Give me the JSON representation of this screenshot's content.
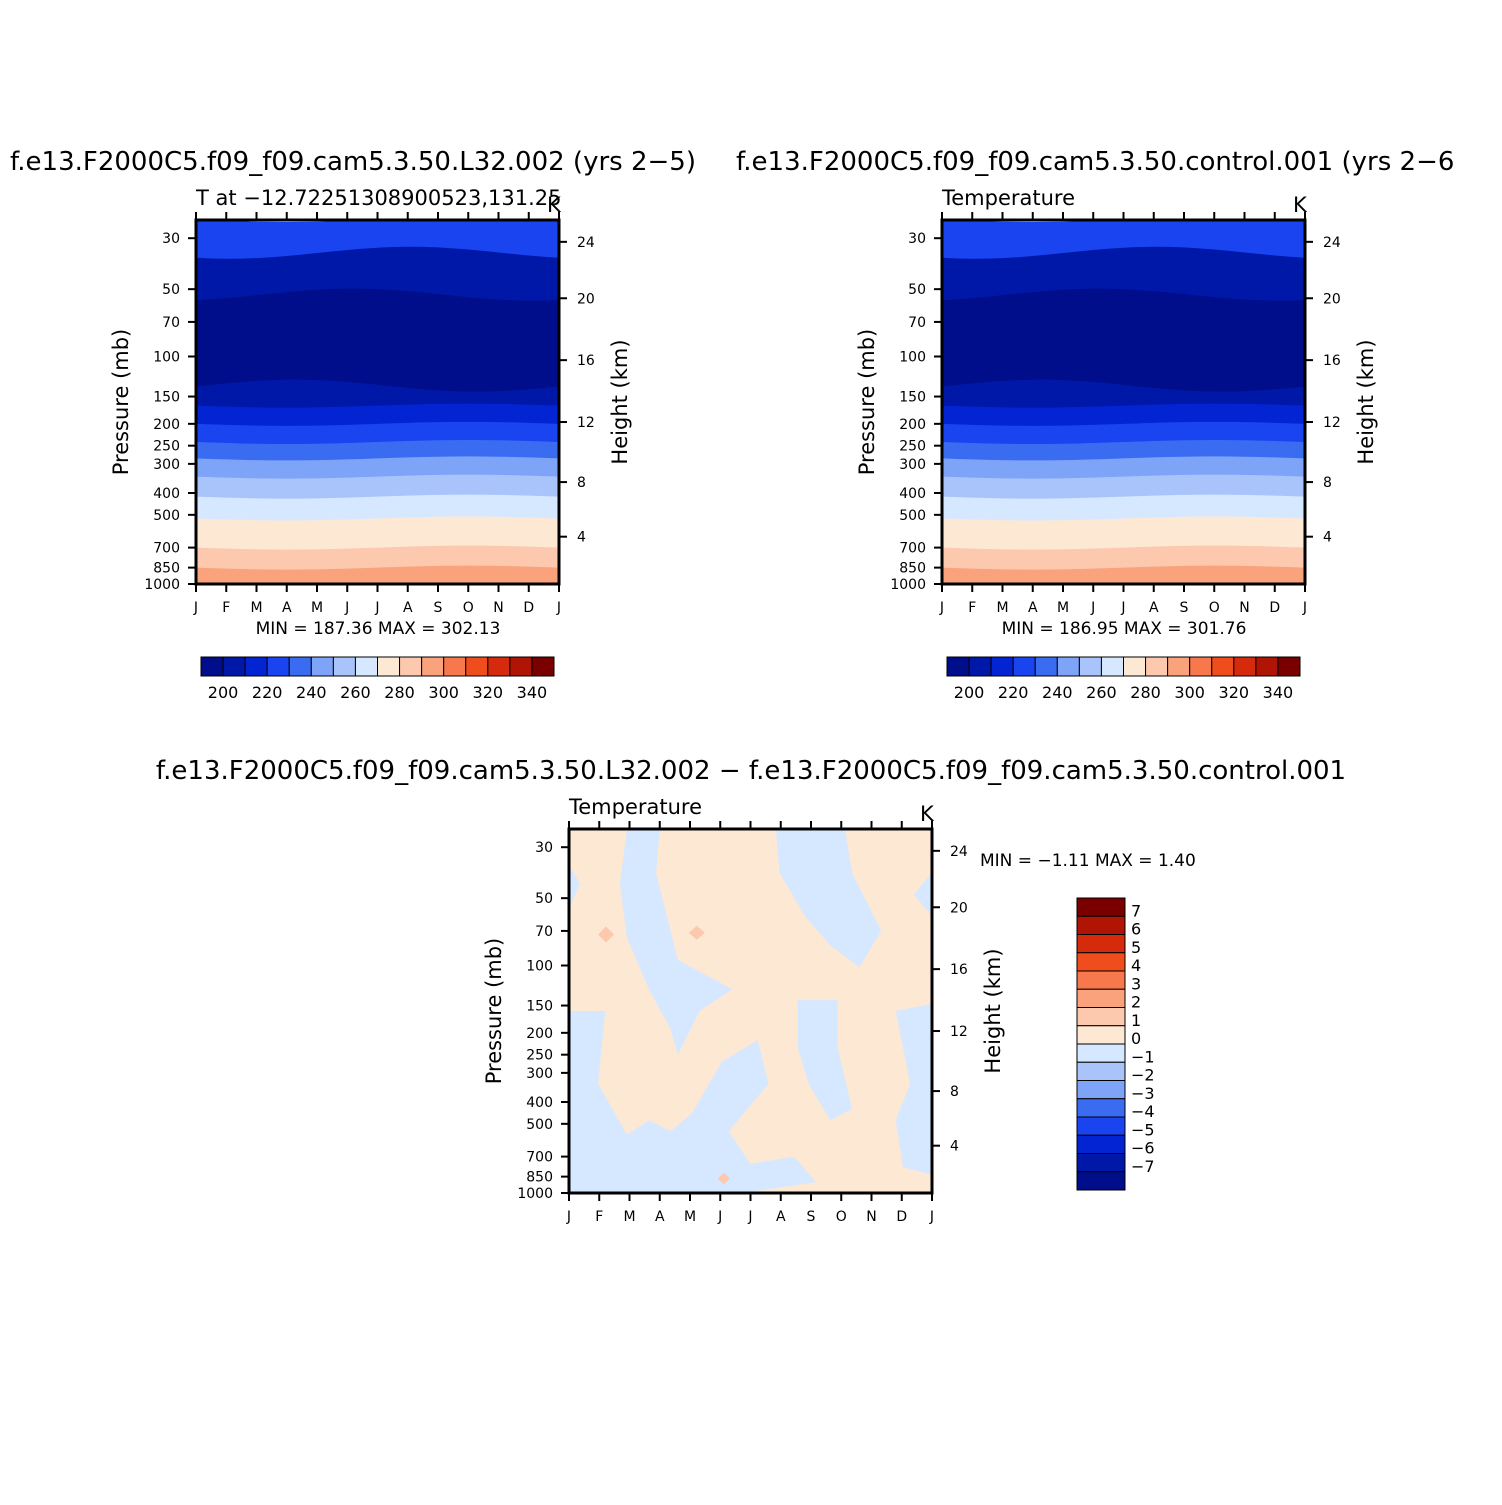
{
  "chart_data": [
    {
      "type": "heatmap",
      "title": "f.e13.F2000C5.f09_f09.cam5.3.50.L32.002 (yrs 2−5)",
      "subtitle_left": "T at −12.72251308900523,131.25",
      "subtitle_right": "K",
      "ylabel": "Pressure (mb)",
      "ylabel_right": "Height (km)",
      "y_ticks": [
        "30",
        "50",
        "70",
        "100",
        "150",
        "200",
        "250",
        "300",
        "400",
        "500",
        "700",
        "850",
        "1000"
      ],
      "y_right_ticks": [
        "24",
        "20",
        "16",
        "12",
        "8",
        "4"
      ],
      "x_ticks": [
        "J",
        "F",
        "M",
        "A",
        "M",
        "J",
        "J",
        "A",
        "S",
        "O",
        "N",
        "D",
        "J"
      ],
      "min_max_label": "MIN = 187.36 MAX = 302.13",
      "min": 187.36,
      "max": 302.13,
      "colorbar_labels": [
        "200",
        "220",
        "240",
        "260",
        "280",
        "300",
        "320",
        "340"
      ],
      "colorbar_orientation": "horizontal"
    },
    {
      "type": "heatmap",
      "title": "f.e13.F2000C5.f09_f09.cam5.3.50.control.001 (yrs 2−6",
      "subtitle_left": "Temperature",
      "subtitle_right": "K",
      "ylabel": "Pressure (mb)",
      "ylabel_right": "Height (km)",
      "y_ticks": [
        "30",
        "50",
        "70",
        "100",
        "150",
        "200",
        "250",
        "300",
        "400",
        "500",
        "700",
        "850",
        "1000"
      ],
      "y_right_ticks": [
        "24",
        "20",
        "16",
        "12",
        "8",
        "4"
      ],
      "x_ticks": [
        "J",
        "F",
        "M",
        "A",
        "M",
        "J",
        "J",
        "A",
        "S",
        "O",
        "N",
        "D",
        "J"
      ],
      "min_max_label": "MIN = 186.95 MAX = 301.76",
      "min": 186.95,
      "max": 301.76,
      "colorbar_labels": [
        "200",
        "220",
        "240",
        "260",
        "280",
        "300",
        "320",
        "340"
      ],
      "colorbar_orientation": "horizontal"
    },
    {
      "type": "heatmap",
      "title": "f.e13.F2000C5.f09_f09.cam5.3.50.L32.002 − f.e13.F2000C5.f09_f09.cam5.3.50.control.001",
      "subtitle_left": "Temperature",
      "subtitle_right": "K",
      "ylabel": "Pressure (mb)",
      "ylabel_right": "Height (km)",
      "y_ticks": [
        "30",
        "50",
        "70",
        "100",
        "150",
        "200",
        "250",
        "300",
        "400",
        "500",
        "700",
        "850",
        "1000"
      ],
      "y_right_ticks": [
        "24",
        "20",
        "16",
        "12",
        "8",
        "4"
      ],
      "x_ticks": [
        "J",
        "F",
        "M",
        "A",
        "M",
        "J",
        "J",
        "A",
        "S",
        "O",
        "N",
        "D",
        "J"
      ],
      "min_max_label": "MIN = −1.11 MAX = 1.40",
      "min": -1.11,
      "max": 1.4,
      "colorbar_labels": [
        "7",
        "6",
        "5",
        "4",
        "3",
        "2",
        "1",
        "0",
        "−1",
        "−2",
        "−3",
        "−4",
        "−5",
        "−6",
        "−7"
      ],
      "colorbar_orientation": "vertical"
    }
  ],
  "palette": {
    "temperature": [
      "#000e8c",
      "#0018a8",
      "#0224d2",
      "#1a44ef",
      "#3a6cf2",
      "#7ea4f8",
      "#a8c4fb",
      "#d6e8ff",
      "#fde8d4",
      "#fcc9ae",
      "#f9a27c",
      "#f6784c",
      "#ef4e1c",
      "#d62a0c",
      "#b01404",
      "#7a0000"
    ],
    "difference": [
      "#000e8c",
      "#0018a8",
      "#0224d2",
      "#1a44ef",
      "#3a6cf2",
      "#7ea4f8",
      "#a8c4fb",
      "#d6e8ff",
      "#fde8d4",
      "#fcc9ae",
      "#f9a27c",
      "#f6784c",
      "#ef4e1c",
      "#d62a0c",
      "#b01404",
      "#7a0000"
    ]
  }
}
